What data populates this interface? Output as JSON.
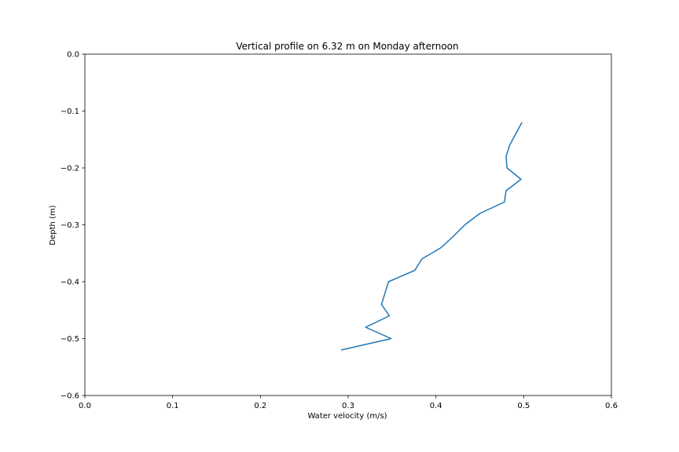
{
  "chart_data": {
    "type": "line",
    "title": "Vertical profile on 6.32 m on Monday afternoon",
    "xlabel": "Water velocity (m/s)",
    "ylabel": "Depth (m)",
    "xlim": [
      0.0,
      0.6
    ],
    "ylim": [
      -0.6,
      0.0
    ],
    "xticks": [
      "0.0",
      "0.1",
      "0.2",
      "0.3",
      "0.4",
      "0.5",
      "0.6"
    ],
    "yticks": [
      "0.0",
      "−0.1",
      "−0.2",
      "−0.3",
      "−0.4",
      "−0.5",
      "−0.6"
    ],
    "grid": false,
    "line_color": "#1f77b4",
    "series": [
      {
        "x": [
          0.498,
          0.491,
          0.484,
          0.48,
          0.481,
          0.497,
          0.48,
          0.48,
          0.478,
          0.45,
          0.433,
          0.42,
          0.406,
          0.384,
          0.376,
          0.346,
          0.338,
          0.347,
          0.32,
          0.349,
          0.292
        ],
        "y": [
          -0.12,
          -0.14,
          -0.16,
          -0.18,
          -0.2,
          -0.22,
          -0.24,
          -0.24,
          -0.26,
          -0.28,
          -0.3,
          -0.32,
          -0.34,
          -0.36,
          -0.38,
          -0.4,
          -0.44,
          -0.46,
          -0.48,
          -0.5,
          -0.52
        ]
      }
    ]
  }
}
